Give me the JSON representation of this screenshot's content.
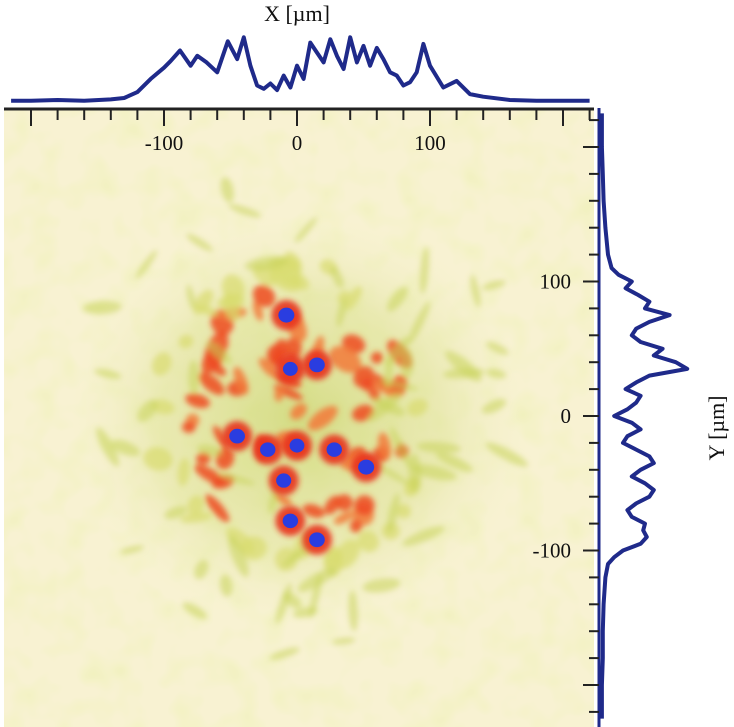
{
  "chart_data": [
    {
      "type": "heatmap",
      "title": "",
      "x_axis": {
        "label": "X [µm]",
        "ticks": [
          -100,
          0,
          100
        ],
        "tick_labels": [
          "-100",
          "0",
          "100"
        ],
        "range": [
          -215,
          220
        ]
      },
      "y_axis": {
        "label": "Y [µm]",
        "ticks": [
          100,
          0,
          -100
        ],
        "tick_labels": [
          "100",
          "0",
          "-100"
        ],
        "range": [
          -225,
          225
        ]
      },
      "colormap": [
        "#fbf6dc",
        "#e9eda0",
        "#d8db6a",
        "#f05a28",
        "#e8321c",
        "#2a3de0"
      ],
      "hotspots": [
        {
          "x": -8,
          "y": 75,
          "intensity": 1.0
        },
        {
          "x": 15,
          "y": 38,
          "intensity": 0.95
        },
        {
          "x": -5,
          "y": 35,
          "intensity": 0.8
        },
        {
          "x": -45,
          "y": -15,
          "intensity": 0.95
        },
        {
          "x": -22,
          "y": -25,
          "intensity": 0.9
        },
        {
          "x": 0,
          "y": -22,
          "intensity": 0.8
        },
        {
          "x": 28,
          "y": -25,
          "intensity": 0.9
        },
        {
          "x": 52,
          "y": -38,
          "intensity": 1.0
        },
        {
          "x": -10,
          "y": -48,
          "intensity": 0.85
        },
        {
          "x": -5,
          "y": -78,
          "intensity": 0.9
        },
        {
          "x": 15,
          "y": -92,
          "intensity": 0.95
        }
      ]
    },
    {
      "type": "line",
      "title": "",
      "xlabel": "X [µm]",
      "ylabel": "",
      "x": [
        -215,
        -200,
        -180,
        -160,
        -140,
        -130,
        -120,
        -110,
        -100,
        -95,
        -88,
        -80,
        -75,
        -68,
        -60,
        -52,
        -45,
        -40,
        -35,
        -30,
        -25,
        -20,
        -15,
        -10,
        -5,
        0,
        5,
        10,
        15,
        20,
        25,
        30,
        35,
        40,
        45,
        50,
        55,
        60,
        65,
        70,
        75,
        80,
        85,
        90,
        95,
        100,
        110,
        120,
        130,
        140,
        160,
        180,
        200,
        220
      ],
      "y": [
        0.02,
        0.02,
        0.03,
        0.02,
        0.04,
        0.06,
        0.15,
        0.35,
        0.52,
        0.62,
        0.78,
        0.55,
        0.7,
        0.6,
        0.45,
        0.92,
        0.65,
        0.98,
        0.55,
        0.25,
        0.2,
        0.28,
        0.18,
        0.4,
        0.22,
        0.55,
        0.35,
        0.9,
        0.75,
        0.6,
        0.95,
        0.7,
        0.5,
        0.98,
        0.6,
        0.85,
        0.55,
        0.82,
        0.65,
        0.45,
        0.4,
        0.25,
        0.3,
        0.45,
        0.88,
        0.55,
        0.22,
        0.32,
        0.12,
        0.08,
        0.03,
        0.02,
        0.02,
        0.02
      ],
      "ylim": [
        0,
        1
      ]
    },
    {
      "type": "line",
      "title": "",
      "xlabel": "",
      "ylabel": "Y [µm]",
      "x": [
        225,
        200,
        180,
        160,
        140,
        120,
        110,
        105,
        100,
        95,
        90,
        85,
        80,
        75,
        70,
        65,
        60,
        55,
        50,
        45,
        40,
        35,
        30,
        25,
        20,
        15,
        10,
        5,
        0,
        -5,
        -10,
        -15,
        -20,
        -25,
        -30,
        -35,
        -40,
        -45,
        -50,
        -55,
        -60,
        -65,
        -70,
        -75,
        -80,
        -85,
        -90,
        -95,
        -100,
        -105,
        -110,
        -120,
        -140,
        -160,
        -180,
        -200,
        -225
      ],
      "y": [
        0.01,
        0.01,
        0.02,
        0.03,
        0.05,
        0.08,
        0.12,
        0.2,
        0.35,
        0.28,
        0.42,
        0.55,
        0.5,
        0.78,
        0.55,
        0.4,
        0.35,
        0.45,
        0.7,
        0.6,
        0.85,
        0.98,
        0.55,
        0.4,
        0.28,
        0.45,
        0.4,
        0.3,
        0.15,
        0.35,
        0.45,
        0.3,
        0.25,
        0.4,
        0.55,
        0.6,
        0.45,
        0.35,
        0.5,
        0.6,
        0.55,
        0.4,
        0.3,
        0.35,
        0.5,
        0.48,
        0.52,
        0.45,
        0.25,
        0.15,
        0.08,
        0.05,
        0.03,
        0.02,
        0.02,
        0.01,
        0.01
      ],
      "ylim": [
        0,
        1
      ]
    }
  ]
}
